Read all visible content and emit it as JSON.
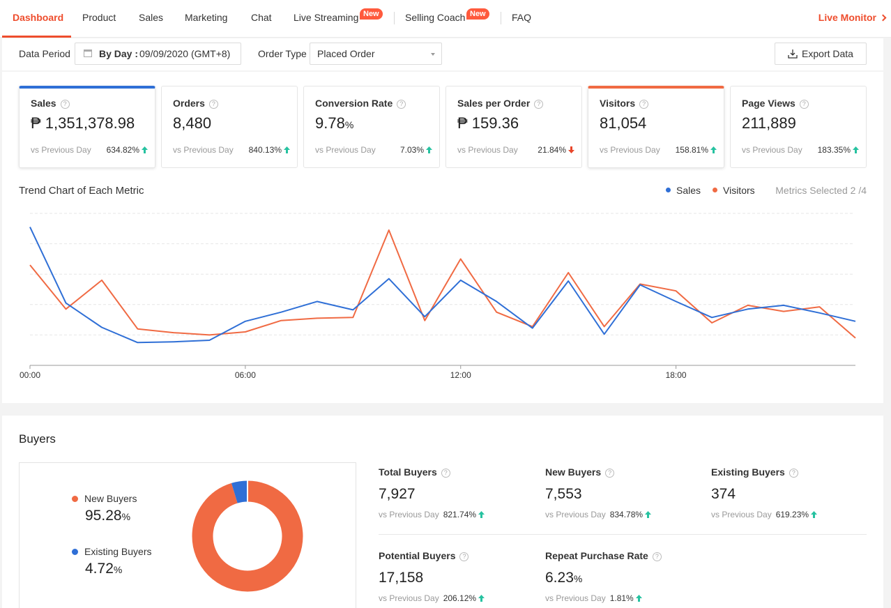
{
  "nav": {
    "items": [
      {
        "label": "Dashboard",
        "active": true
      },
      {
        "label": "Product"
      },
      {
        "label": "Sales"
      },
      {
        "label": "Marketing"
      },
      {
        "label": "Chat"
      },
      {
        "label": "Live Streaming",
        "badge": "New"
      },
      {
        "label": "Selling Coach",
        "badge": "New"
      },
      {
        "label": "FAQ"
      }
    ],
    "live_monitor": "Live Monitor"
  },
  "filter": {
    "data_period_label": "Data Period",
    "by_day_label": "By Day :",
    "date_value": "09/09/2020 (GMT+8)",
    "order_type_label": "Order Type",
    "order_type_value": "Placed Order",
    "export_label": "Export Data"
  },
  "metrics": [
    {
      "name": "Sales",
      "value": "₱ 1,351,378.98",
      "unit": "",
      "compare": "vs Previous Day",
      "change": "634.82%",
      "direction": "up",
      "selected": "blue"
    },
    {
      "name": "Orders",
      "value": "8,480",
      "unit": "",
      "compare": "vs Previous Day",
      "change": "840.13%",
      "direction": "up"
    },
    {
      "name": "Conversion Rate",
      "value": "9.78",
      "unit": "%",
      "compare": "vs Previous Day",
      "change": "7.03%",
      "direction": "up"
    },
    {
      "name": "Sales per Order",
      "value": "₱ 159.36",
      "unit": "",
      "compare": "vs Previous Day",
      "change": "21.84%",
      "direction": "down"
    },
    {
      "name": "Visitors",
      "value": "81,054",
      "unit": "",
      "compare": "vs Previous Day",
      "change": "158.81%",
      "direction": "up",
      "selected": "orange"
    },
    {
      "name": "Page Views",
      "value": "211,889",
      "unit": "",
      "compare": "vs Previous Day",
      "change": "183.35%",
      "direction": "up"
    }
  ],
  "trend": {
    "title": "Trend Chart of Each Metric",
    "metrics_selected": "Metrics Selected 2 /4"
  },
  "chart_data": {
    "type": "line",
    "x": [
      "00:00",
      "01:00",
      "02:00",
      "03:00",
      "04:00",
      "05:00",
      "06:00",
      "07:00",
      "08:00",
      "09:00",
      "10:00",
      "11:00",
      "12:00",
      "13:00",
      "14:00",
      "15:00",
      "16:00",
      "17:00",
      "18:00",
      "19:00",
      "20:00",
      "21:00",
      "22:00",
      "23:00"
    ],
    "xticks": [
      "00:00",
      "06:00",
      "12:00",
      "18:00"
    ],
    "series": [
      {
        "name": "Sales",
        "color": "#2f6fd6",
        "values": [
          91,
          41,
          25,
          15,
          15.5,
          16.5,
          29,
          35,
          42,
          36.5,
          57,
          32,
          56,
          42,
          24.5,
          55.5,
          20.5,
          53,
          42,
          31.5,
          37,
          39.5,
          34.5,
          29
        ]
      },
      {
        "name": "Visitors",
        "color": "#f06a43",
        "values": [
          66,
          37,
          56,
          24,
          21.5,
          20,
          22,
          29.5,
          31,
          31.5,
          89,
          29.5,
          70,
          35,
          25.5,
          61,
          25.5,
          53.5,
          49,
          28,
          39.5,
          35.5,
          38.5,
          18
        ]
      }
    ],
    "ylim": [
      0,
      100
    ],
    "grid": true,
    "legend": "top-right"
  },
  "buyers": {
    "title": "Buyers",
    "donut": [
      {
        "label": "New Buyers",
        "pct": "95.28",
        "value": 95.28,
        "color": "#f06a43"
      },
      {
        "label": "Existing Buyers",
        "pct": "4.72",
        "value": 4.72,
        "color": "#2f6fd6"
      }
    ],
    "stats": [
      {
        "name": "Total Buyers",
        "value": "7,927",
        "unit": "",
        "compare": "vs Previous Day",
        "change": "821.74%"
      },
      {
        "name": "New Buyers",
        "value": "7,553",
        "unit": "",
        "compare": "vs Previous Day",
        "change": "834.78%"
      },
      {
        "name": "Existing Buyers",
        "value": "374",
        "unit": "",
        "compare": "vs Previous Day",
        "change": "619.23%"
      },
      {
        "name": "Potential Buyers",
        "value": "17,158",
        "unit": "",
        "compare": "vs Previous Day",
        "change": "206.12%"
      },
      {
        "name": "Repeat Purchase Rate",
        "value": "6.23",
        "unit": "%",
        "compare": "vs Previous Day",
        "change": "1.81%"
      }
    ]
  },
  "colors": {
    "accent": "#ee4d2d",
    "up": "#26c2a0",
    "down": "#e8462a",
    "sales": "#2f6fd6",
    "visitors": "#f06a43"
  },
  "icons": {
    "help": "question-circle-icon",
    "calendar": "calendar-icon",
    "export": "download-icon",
    "chevron": "chevron-right-icon"
  }
}
